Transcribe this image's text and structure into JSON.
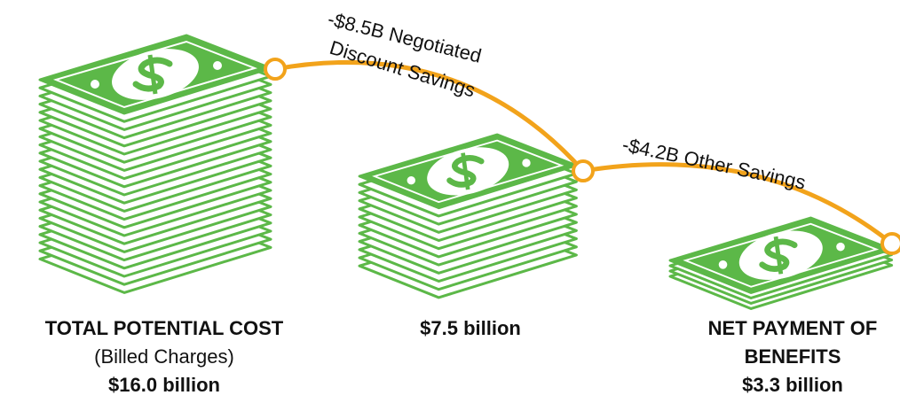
{
  "stacks": [
    {
      "label": [
        "TOTAL POTENTIAL COST",
        "(Billed Charges)"
      ],
      "amount": "$16.0 billion"
    },
    {
      "amount": "$7.5 billion"
    },
    {
      "label": [
        "NET PAYMENT OF",
        "BENEFITS"
      ],
      "amount": "$3.3 billion"
    }
  ],
  "savings": [
    {
      "label": [
        "-$8.5B Negotiated",
        "Discount Savings"
      ]
    },
    {
      "label": [
        "-$4.2B Other Savings"
      ]
    }
  ]
}
